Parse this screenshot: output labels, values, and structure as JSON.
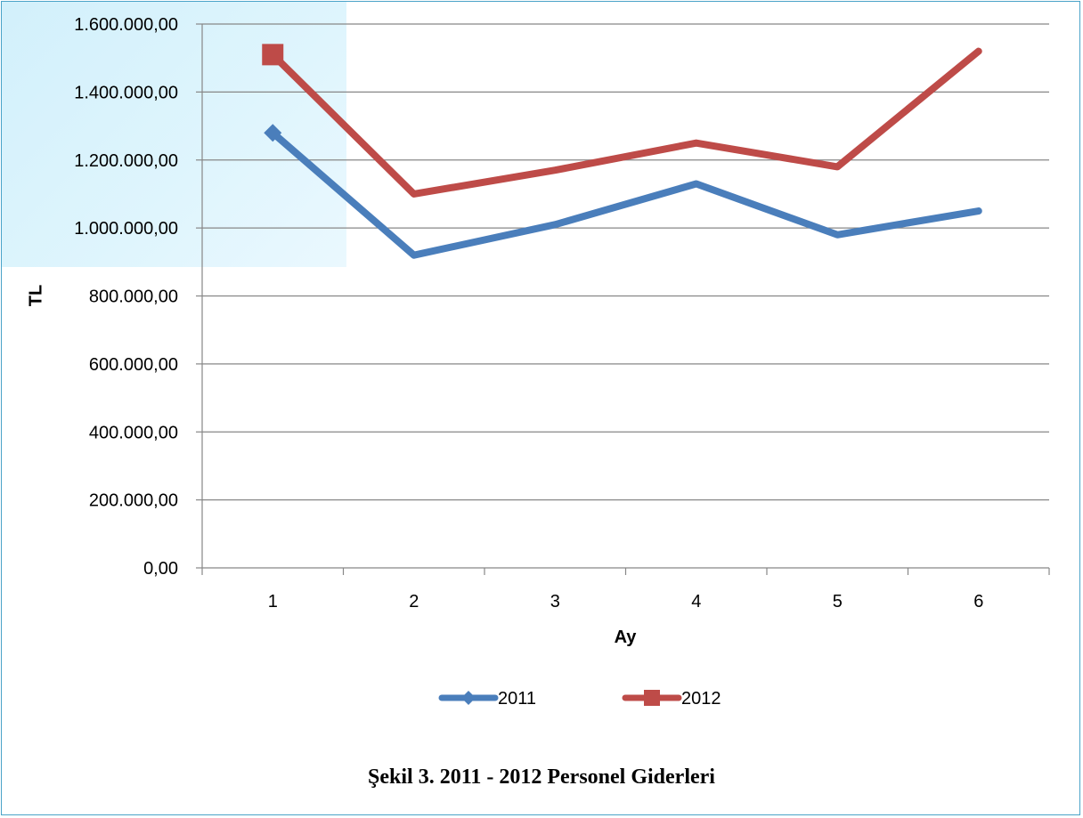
{
  "caption": "Şekil 3. 2011 - 2012 Personel Giderleri",
  "chart_data": {
    "type": "line",
    "categories": [
      "1",
      "2",
      "3",
      "4",
      "5",
      "6"
    ],
    "series": [
      {
        "name": "2011",
        "color": "#4a7ebb",
        "marker": "diamond",
        "values": [
          1280000,
          920000,
          1010000,
          1130000,
          980000,
          1050000
        ]
      },
      {
        "name": "2012",
        "color": "#be4b48",
        "marker": "square",
        "values": [
          1510000,
          1100000,
          1170000,
          1250000,
          1180000,
          1520000
        ]
      }
    ],
    "xlabel": "Ay",
    "ylabel": "TL",
    "ylim": [
      0,
      1600000
    ],
    "yticks": [
      "0,00",
      "200.000,00",
      "400.000,00",
      "600.000,00",
      "800.000,00",
      "1.000.000,00",
      "1.200.000,00",
      "1.400.000,00",
      "1.600.000,00"
    ],
    "grid": true,
    "legend": "bottom"
  }
}
